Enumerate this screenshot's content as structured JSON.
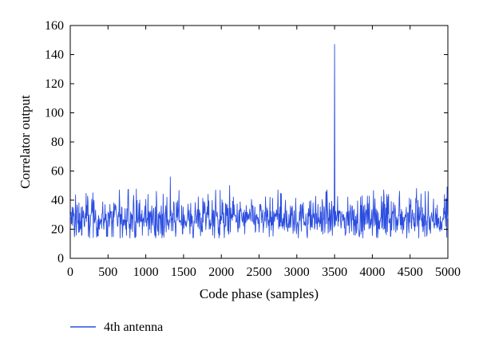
{
  "chart_data": {
    "type": "line",
    "title": "",
    "xlabel": "Code phase (samples)",
    "ylabel": "Correlator output",
    "xlim": [
      0,
      5000
    ],
    "ylim": [
      0,
      160
    ],
    "xticks": [
      0,
      500,
      1000,
      1500,
      2000,
      2500,
      3000,
      3500,
      4000,
      4500,
      5000
    ],
    "yticks": [
      0,
      20,
      40,
      60,
      80,
      100,
      120,
      140,
      160
    ],
    "grid": false,
    "legend_position": "bottom-left",
    "series": [
      {
        "name": "4th antenna",
        "color": "#2b4de0",
        "noise_baseline": 27,
        "noise_range": [
          14,
          48
        ],
        "peaks": [
          {
            "x": 3500,
            "y": 147
          },
          {
            "x": 1325,
            "y": 56
          },
          {
            "x": 2110,
            "y": 50
          },
          {
            "x": 4990,
            "y": 49
          },
          {
            "x": 650,
            "y": 47
          },
          {
            "x": 2750,
            "y": 47
          },
          {
            "x": 3400,
            "y": 47
          },
          {
            "x": 4150,
            "y": 47
          },
          {
            "x": 4700,
            "y": 46
          },
          {
            "x": 300,
            "y": 45
          }
        ]
      }
    ]
  }
}
